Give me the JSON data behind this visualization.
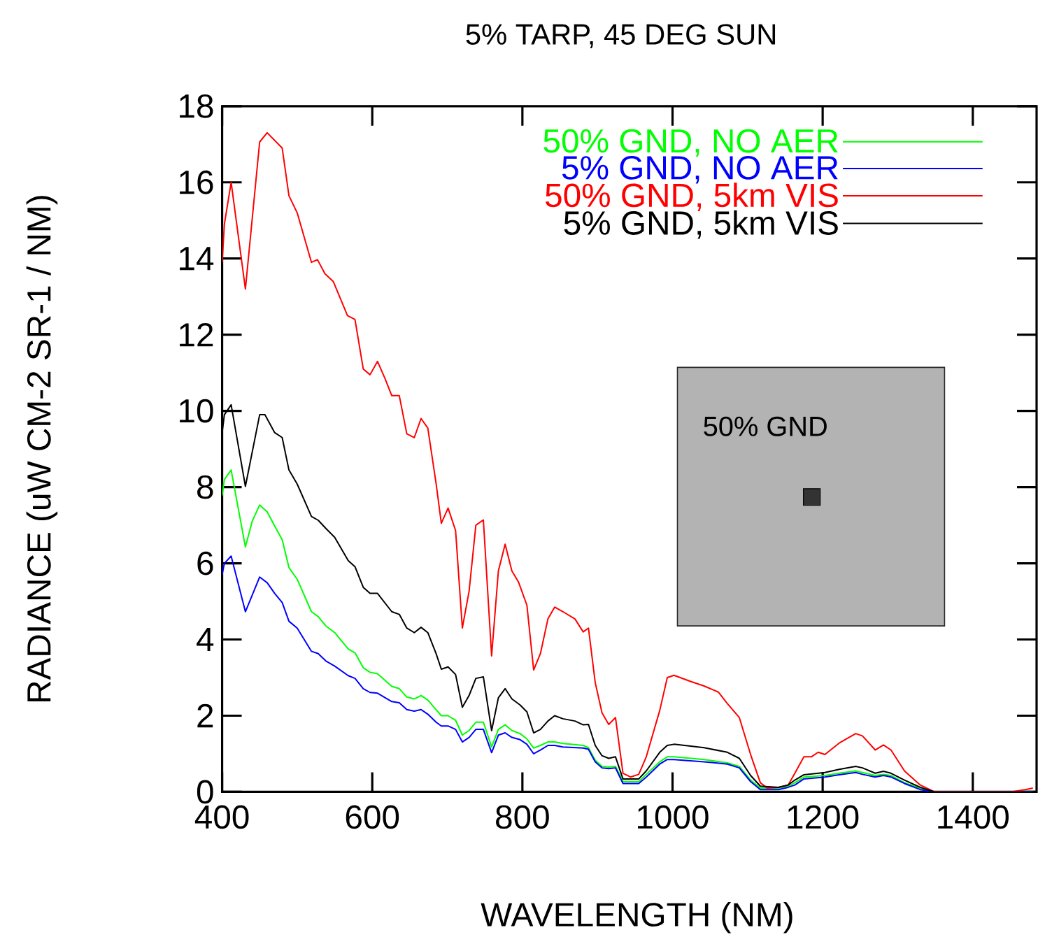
{
  "chart_data": {
    "type": "line",
    "title": "5% TARP, 45 DEG SUN",
    "xlabel": "WAVELENGTH (NM)",
    "ylabel": "RADIANCE (uW CM-2 SR-1 / NM)",
    "xlim": [
      400,
      1485
    ],
    "ylim": [
      0,
      18
    ],
    "xticks": [
      400,
      600,
      800,
      1000,
      1200,
      1400
    ],
    "yticks": [
      0,
      2,
      4,
      6,
      8,
      10,
      12,
      14,
      16,
      18
    ],
    "legend": "top right",
    "annotations": [
      "50% GND"
    ],
    "series": [
      {
        "name": "50% GND, NO AER",
        "color": "#00ff00",
        "x": [
          400,
          403,
          412,
          431,
          440,
          450,
          460,
          470,
          480,
          489,
          500,
          519,
          528,
          538,
          550,
          568,
          577,
          588,
          597,
          607,
          626,
          636,
          646,
          656,
          665,
          674,
          685,
          692,
          701,
          711,
          720,
          729,
          738,
          748,
          759,
          768,
          777,
          786,
          797,
          806,
          815,
          824,
          834,
          843,
          854,
          881,
          888,
          897,
          906,
          915,
          924,
          934,
          955,
          965,
          983,
          993,
          1002,
          1042,
          1073,
          1089,
          1104,
          1117,
          1141,
          1154,
          1163,
          1175,
          1203,
          1222,
          1244,
          1253,
          1270,
          1281,
          1291,
          1309,
          1330,
          1349,
          1480
        ],
        "values": [
          7.78,
          8.2,
          8.45,
          6.43,
          7.1,
          7.53,
          7.35,
          6.98,
          6.62,
          5.89,
          5.58,
          4.73,
          4.6,
          4.36,
          4.18,
          3.75,
          3.65,
          3.26,
          3.14,
          3.1,
          2.77,
          2.71,
          2.49,
          2.44,
          2.53,
          2.41,
          2.16,
          2.0,
          2.0,
          1.88,
          1.49,
          1.61,
          1.83,
          1.83,
          1.18,
          1.64,
          1.76,
          1.61,
          1.53,
          1.39,
          1.15,
          1.22,
          1.31,
          1.31,
          1.27,
          1.22,
          1.16,
          0.83,
          0.67,
          0.65,
          0.67,
          0.27,
          0.27,
          0.46,
          0.79,
          0.92,
          0.92,
          0.85,
          0.76,
          0.67,
          0.31,
          0.1,
          0.1,
          0.15,
          0.24,
          0.39,
          0.43,
          0.49,
          0.55,
          0.51,
          0.43,
          0.46,
          0.43,
          0.24,
          0.1,
          0,
          0
        ]
      },
      {
        "name": "5% GND, NO AER",
        "color": "#0000ff",
        "x": [
          400,
          403,
          412,
          431,
          450,
          460,
          470,
          480,
          489,
          500,
          519,
          528,
          538,
          550,
          568,
          577,
          588,
          597,
          607,
          626,
          636,
          646,
          656,
          665,
          674,
          685,
          692,
          701,
          711,
          720,
          729,
          738,
          748,
          759,
          768,
          777,
          786,
          797,
          806,
          815,
          824,
          834,
          843,
          854,
          881,
          888,
          897,
          906,
          915,
          924,
          934,
          955,
          965,
          983,
          993,
          1002,
          1042,
          1073,
          1089,
          1104,
          1117,
          1141,
          1154,
          1163,
          1175,
          1203,
          1222,
          1244,
          1253,
          1270,
          1281,
          1291,
          1309,
          1330,
          1349,
          1480
        ],
        "values": [
          5.7,
          6.0,
          6.19,
          4.73,
          5.64,
          5.49,
          5.21,
          4.97,
          4.48,
          4.3,
          3.69,
          3.63,
          3.44,
          3.3,
          3.05,
          2.98,
          2.71,
          2.61,
          2.59,
          2.37,
          2.34,
          2.16,
          2.12,
          2.16,
          2.04,
          1.83,
          1.73,
          1.73,
          1.64,
          1.31,
          1.43,
          1.64,
          1.64,
          1.03,
          1.49,
          1.55,
          1.43,
          1.37,
          1.25,
          1.0,
          1.1,
          1.22,
          1.22,
          1.18,
          1.15,
          1.12,
          0.79,
          0.63,
          0.61,
          0.63,
          0.22,
          0.22,
          0.39,
          0.73,
          0.85,
          0.85,
          0.79,
          0.73,
          0.63,
          0.27,
          0.06,
          0.06,
          0.12,
          0.18,
          0.34,
          0.39,
          0.45,
          0.51,
          0.46,
          0.39,
          0.43,
          0.39,
          0.22,
          0.06,
          0,
          0
        ]
      },
      {
        "name": "50% GND, 5km VIS",
        "color": "#ff0000",
        "x": [
          400,
          403,
          412,
          431,
          450,
          460,
          480,
          489,
          500,
          519,
          527,
          537,
          548,
          567,
          577,
          588,
          597,
          607,
          617,
          626,
          636,
          646,
          656,
          665,
          674,
          685,
          692,
          701,
          711,
          720,
          729,
          738,
          748,
          759,
          768,
          777,
          786,
          795,
          806,
          815,
          824,
          834,
          843,
          854,
          870,
          881,
          888,
          897,
          906,
          915,
          924,
          934,
          944,
          955,
          965,
          983,
          993,
          1002,
          1024,
          1042,
          1061,
          1073,
          1089,
          1104,
          1117,
          1126,
          1141,
          1154,
          1163,
          1175,
          1185,
          1194,
          1203,
          1222,
          1244,
          1253,
          1270,
          1281,
          1291,
          1309,
          1330,
          1349,
          1451,
          1470,
          1480
        ],
        "values": [
          13.9,
          14.9,
          16.0,
          13.2,
          17.06,
          17.3,
          16.9,
          15.65,
          15.2,
          13.9,
          13.97,
          13.6,
          13.4,
          12.5,
          12.4,
          11.1,
          10.95,
          11.3,
          10.85,
          10.4,
          10.4,
          9.4,
          9.3,
          9.8,
          9.55,
          8.1,
          7.05,
          7.45,
          6.86,
          4.3,
          5.27,
          7.0,
          7.14,
          3.57,
          5.8,
          6.5,
          5.8,
          5.5,
          4.9,
          3.2,
          3.63,
          4.54,
          4.85,
          4.73,
          4.54,
          4.2,
          4.3,
          2.87,
          2.08,
          1.77,
          1.95,
          0.49,
          0.39,
          0.46,
          0.92,
          2.14,
          3.0,
          3.06,
          2.9,
          2.78,
          2.62,
          2.32,
          1.95,
          0.98,
          0.24,
          0.1,
          0.12,
          0.18,
          0.49,
          0.92,
          0.92,
          1.04,
          0.98,
          1.28,
          1.53,
          1.47,
          1.1,
          1.23,
          1.1,
          0.55,
          0.18,
          0,
          0,
          0.06,
          0.1
        ]
      },
      {
        "name": "5% GND, 5km VIS",
        "color": "#000000",
        "x": [
          400,
          403,
          412,
          431,
          450,
          457,
          470,
          480,
          489,
          500,
          519,
          528,
          538,
          550,
          568,
          577,
          588,
          597,
          607,
          626,
          636,
          646,
          656,
          665,
          674,
          685,
          692,
          701,
          711,
          720,
          729,
          738,
          748,
          759,
          768,
          777,
          786,
          797,
          806,
          815,
          824,
          834,
          843,
          854,
          870,
          881,
          888,
          897,
          906,
          915,
          924,
          934,
          955,
          965,
          983,
          993,
          1002,
          1042,
          1073,
          1089,
          1104,
          1117,
          1141,
          1154,
          1163,
          1175,
          1203,
          1222,
          1244,
          1253,
          1270,
          1281,
          1291,
          1309,
          1330,
          1349,
          1480
        ],
        "values": [
          9.43,
          9.9,
          10.16,
          8.02,
          9.9,
          9.9,
          9.43,
          9.3,
          8.45,
          8.08,
          7.23,
          7.13,
          6.92,
          6.68,
          6.07,
          5.91,
          5.37,
          5.21,
          5.21,
          4.73,
          4.66,
          4.3,
          4.18,
          4.32,
          4.18,
          3.63,
          3.22,
          3.28,
          3.08,
          2.22,
          2.53,
          2.98,
          3.02,
          1.61,
          2.47,
          2.71,
          2.44,
          2.28,
          2.1,
          1.55,
          1.64,
          1.86,
          2.0,
          1.92,
          1.86,
          1.76,
          1.77,
          1.22,
          0.95,
          0.88,
          0.92,
          0.34,
          0.34,
          0.55,
          1.04,
          1.22,
          1.25,
          1.16,
          1.04,
          0.88,
          0.43,
          0.15,
          0.12,
          0.18,
          0.31,
          0.45,
          0.51,
          0.59,
          0.67,
          0.63,
          0.49,
          0.54,
          0.49,
          0.31,
          0.12,
          0,
          0
        ]
      }
    ]
  }
}
